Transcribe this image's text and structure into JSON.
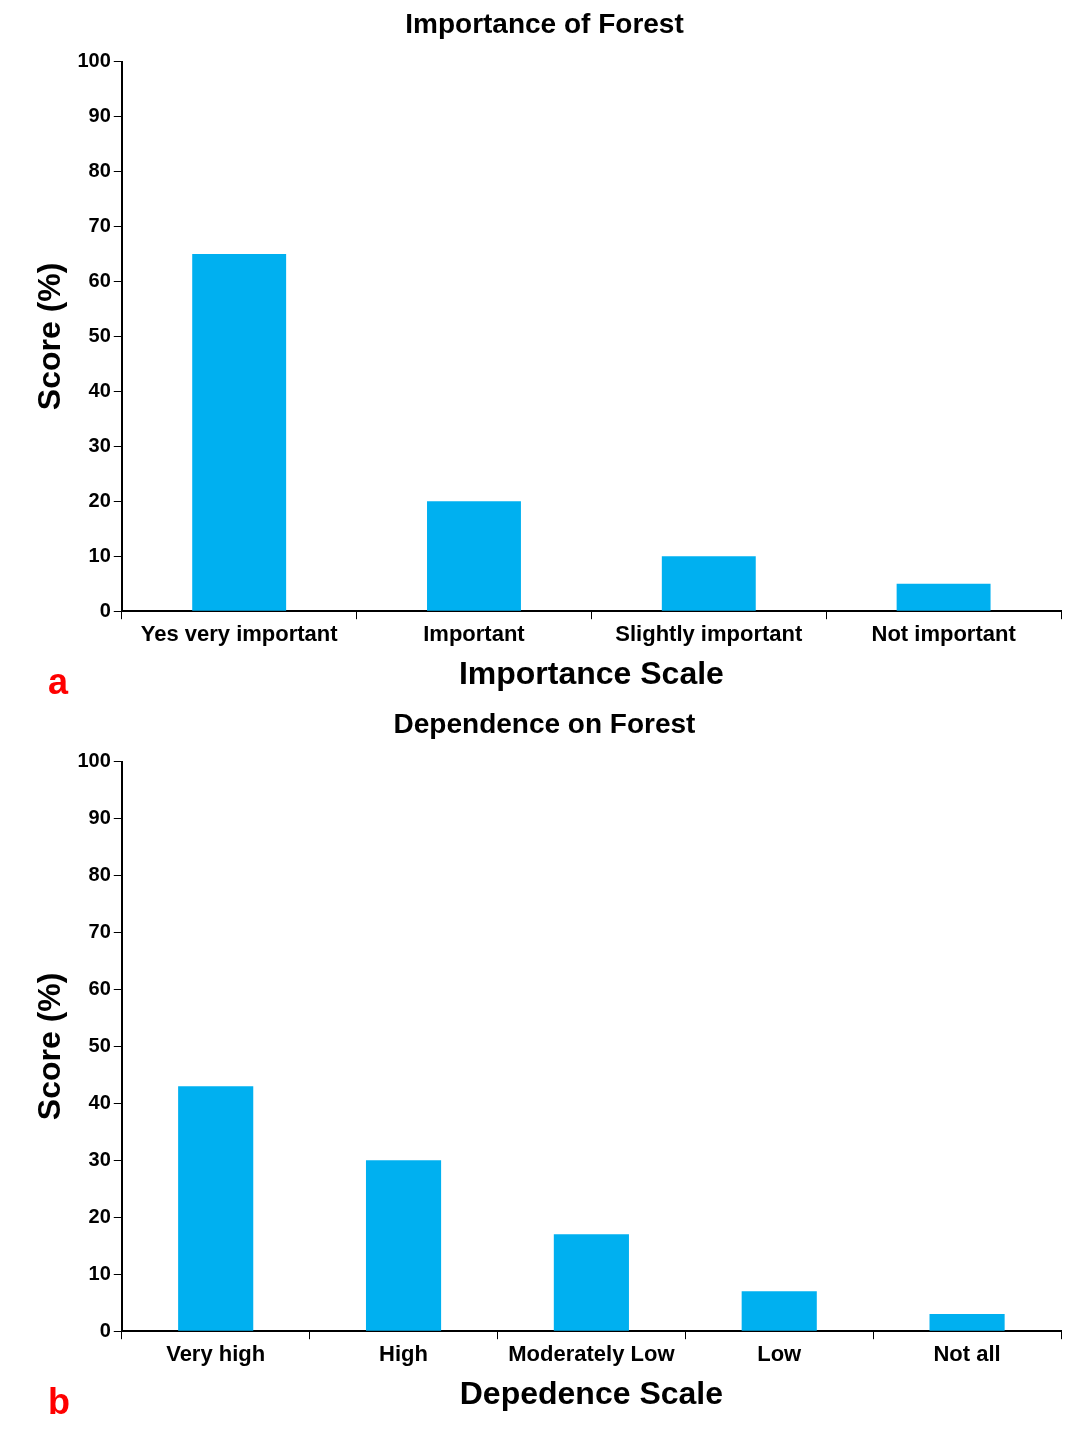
{
  "chart_data": [
    {
      "type": "bar",
      "title": "Importance of Forest",
      "xlabel": "Importance Scale",
      "ylabel": "Score (%)",
      "categories": [
        "Yes very important",
        "Important",
        "Slightly important",
        "Not important"
      ],
      "values": [
        65,
        20,
        10,
        5
      ],
      "color": "#00b0f0",
      "ylim": [
        0,
        100
      ],
      "yticks": [
        0,
        10,
        20,
        30,
        40,
        50,
        60,
        70,
        80,
        90,
        100
      ],
      "grid": false,
      "legend": false,
      "annotations": [
        "a"
      ]
    },
    {
      "type": "bar",
      "title": "Dependence on Forest",
      "xlabel": "Depedence Scale",
      "ylabel": "Score (%)",
      "categories": [
        "Very high",
        "High",
        "Moderately Low",
        "Low",
        "Not all"
      ],
      "values": [
        43,
        30,
        17,
        7,
        3
      ],
      "color": "#00b0f0",
      "ylim": [
        0,
        100
      ],
      "yticks": [
        0,
        10,
        20,
        30,
        40,
        50,
        60,
        70,
        80,
        90,
        100
      ],
      "grid": false,
      "legend": false,
      "annotations": [
        "b"
      ]
    }
  ]
}
